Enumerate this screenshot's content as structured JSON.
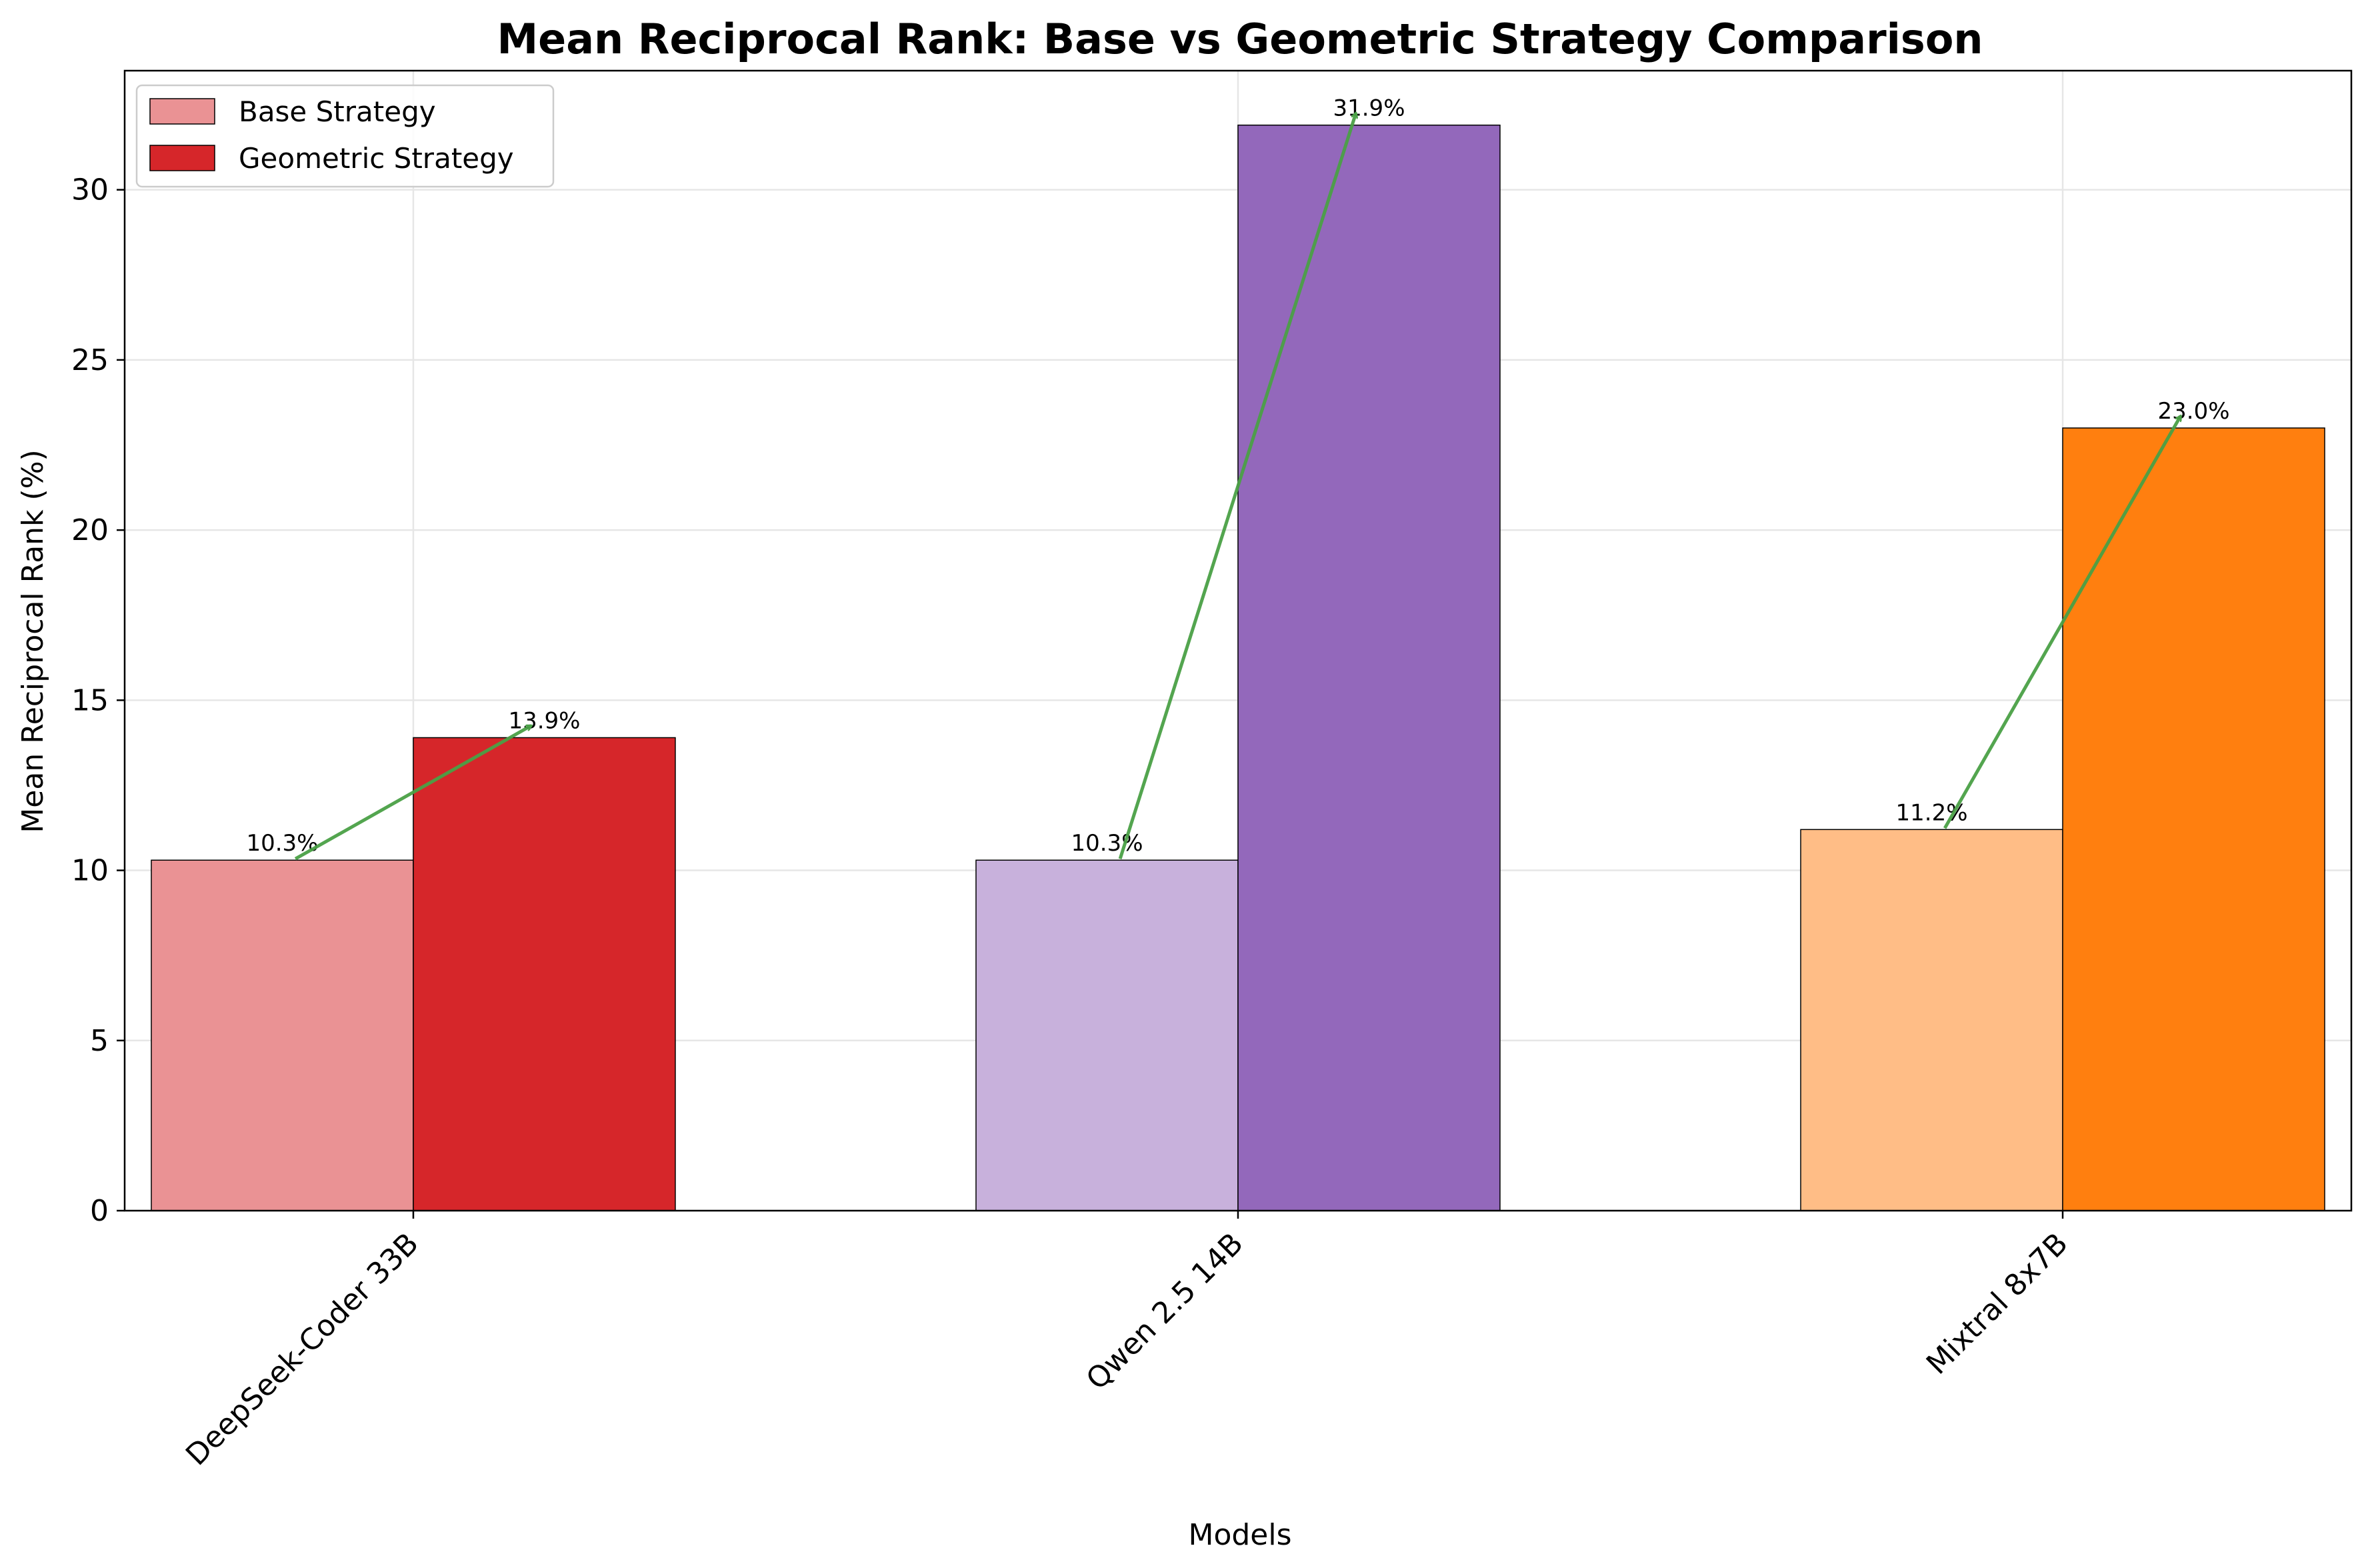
{
  "chart_data": {
    "type": "bar",
    "title": "Mean Reciprocal Rank: Base vs Geometric Strategy Comparison",
    "xlabel": "Models",
    "ylabel": "Mean Reciprocal Rank (%)",
    "categories": [
      "DeepSeek-Coder 33B",
      "Qwen 2.5 14B",
      "Mixtral 8x7B"
    ],
    "ylim": [
      0,
      33.5
    ],
    "yticks": [
      0,
      5,
      10,
      15,
      20,
      25,
      30
    ],
    "grid": true,
    "legend_position": "top-left",
    "series": [
      {
        "name": "Base Strategy",
        "values": [
          10.3,
          10.3,
          11.2
        ],
        "labels": [
          "10.3%",
          "10.3%",
          "11.2%"
        ],
        "colors": [
          "#ea9294",
          "#c8b1dc",
          "#ffbd86"
        ],
        "legend_color": "#ea9294"
      },
      {
        "name": "Geometric Strategy",
        "values": [
          13.9,
          31.9,
          23.0
        ],
        "labels": [
          "13.9%",
          "31.9%",
          "23.0%"
        ],
        "colors": [
          "#d6262a",
          "#9368bb",
          "#ff7f0f"
        ],
        "legend_color": "#d6262a"
      }
    ],
    "annotations": {
      "type": "improvement-arrows",
      "color": "#4aa046"
    }
  }
}
